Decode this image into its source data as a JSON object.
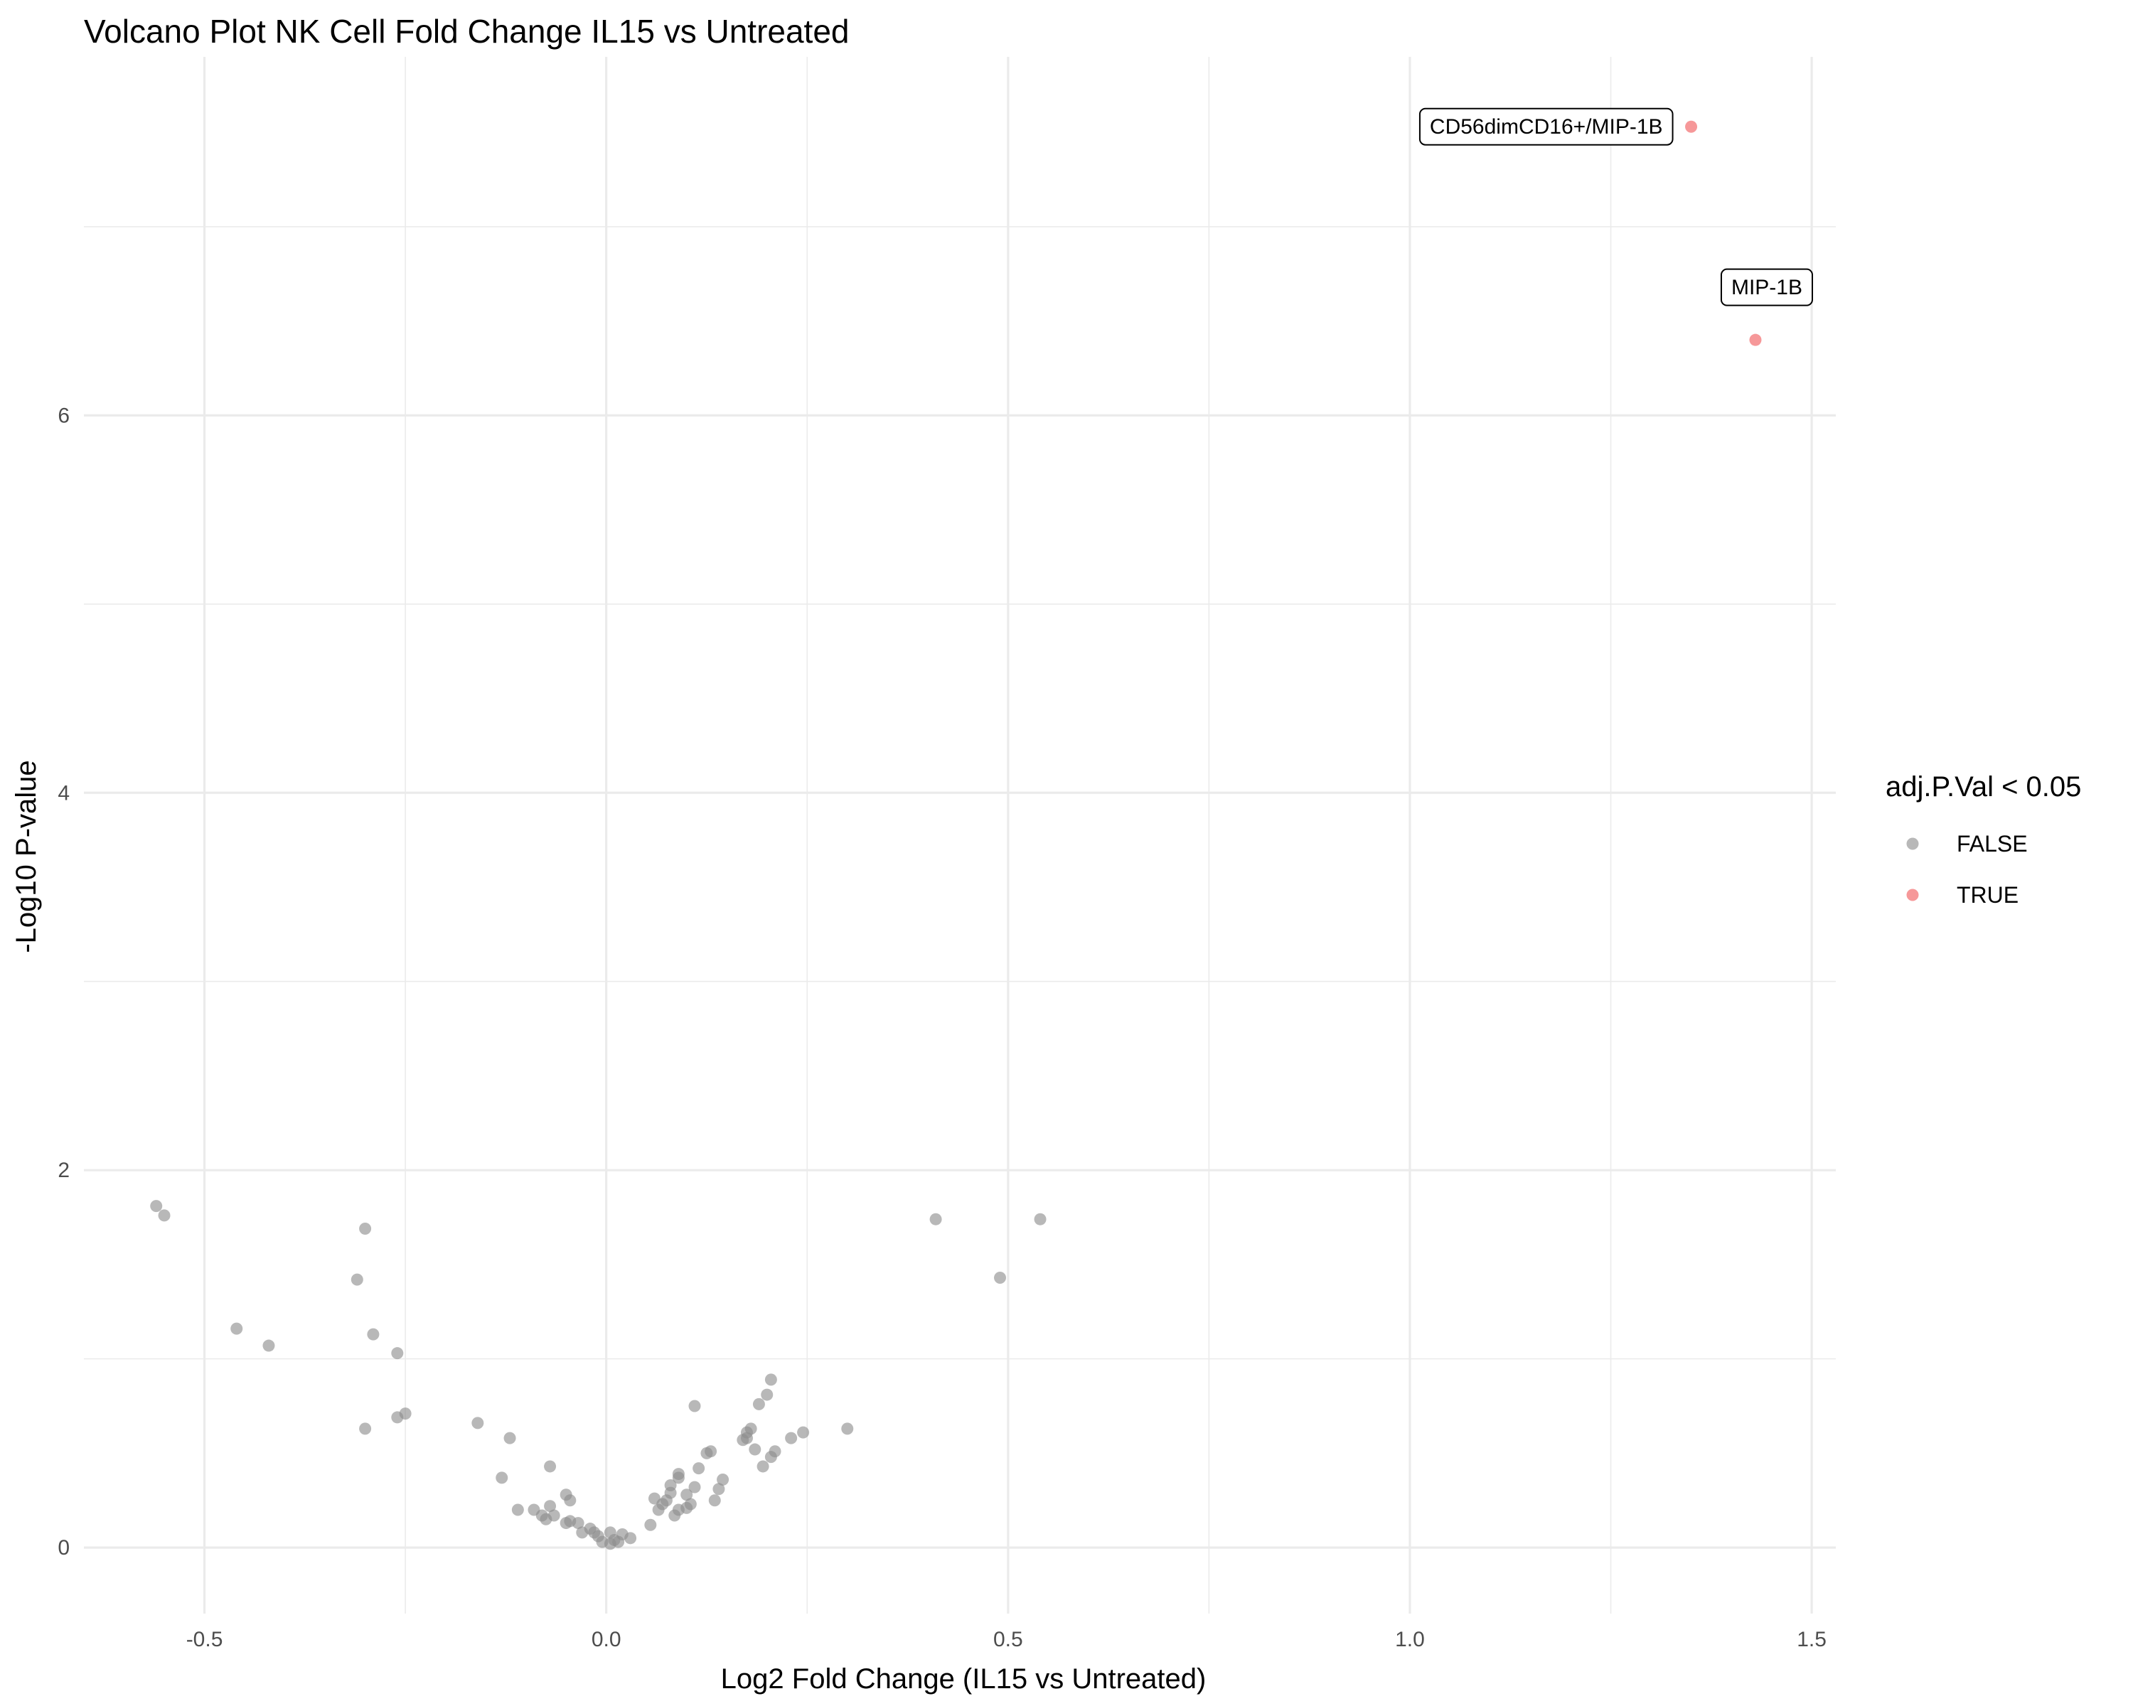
{
  "chart_data": {
    "type": "scatter",
    "title": "Volcano Plot NK Cell Fold Change  IL15 vs Untreated",
    "xlabel": "Log2 Fold Change (IL15 vs Untreated)",
    "ylabel": "-Log10 P-value",
    "xlim": [
      -0.65,
      1.53
    ],
    "ylim": [
      -0.35,
      7.9
    ],
    "x_ticks": [
      -0.5,
      0.0,
      0.5,
      1.0,
      1.5
    ],
    "x_tick_labels": [
      "-0.5",
      "0.0",
      "0.5",
      "1.0",
      "1.5"
    ],
    "y_ticks": [
      0,
      2,
      4,
      6
    ],
    "y_tick_labels": [
      "0",
      "2",
      "4",
      "6"
    ],
    "grid": true,
    "legend": {
      "title": "adj.P.Val < 0.05",
      "placement": "right",
      "entries": [
        {
          "label": "FALSE",
          "color": "#8c8c8c"
        },
        {
          "label": "TRUE",
          "color": "#f0585a"
        }
      ]
    },
    "series": [
      {
        "name": "FALSE",
        "color": "#8c8c8c",
        "points": [
          [
            -0.56,
            1.81
          ],
          [
            -0.55,
            1.76
          ],
          [
            -0.46,
            1.16
          ],
          [
            -0.42,
            1.07
          ],
          [
            -0.3,
            1.69
          ],
          [
            -0.31,
            1.42
          ],
          [
            -0.29,
            1.13
          ],
          [
            -0.26,
            1.03
          ],
          [
            -0.25,
            0.71
          ],
          [
            -0.26,
            0.69
          ],
          [
            -0.3,
            0.63
          ],
          [
            -0.16,
            0.66
          ],
          [
            -0.12,
            0.58
          ],
          [
            -0.13,
            0.37
          ],
          [
            -0.11,
            0.2
          ],
          [
            -0.09,
            0.2
          ],
          [
            -0.08,
            0.17
          ],
          [
            -0.075,
            0.15
          ],
          [
            -0.07,
            0.43
          ],
          [
            -0.07,
            0.22
          ],
          [
            -0.065,
            0.17
          ],
          [
            -0.05,
            0.28
          ],
          [
            -0.045,
            0.25
          ],
          [
            -0.045,
            0.14
          ],
          [
            -0.05,
            0.13
          ],
          [
            -0.035,
            0.13
          ],
          [
            -0.03,
            0.08
          ],
          [
            -0.02,
            0.1
          ],
          [
            -0.015,
            0.08
          ],
          [
            -0.01,
            0.06
          ],
          [
            -0.005,
            0.03
          ],
          [
            0.005,
            0.08
          ],
          [
            0.005,
            0.02
          ],
          [
            0.01,
            0.04
          ],
          [
            0.015,
            0.03
          ],
          [
            0.02,
            0.07
          ],
          [
            0.03,
            0.05
          ],
          [
            0.055,
            0.12
          ],
          [
            0.06,
            0.26
          ],
          [
            0.065,
            0.2
          ],
          [
            0.07,
            0.23
          ],
          [
            0.075,
            0.25
          ],
          [
            0.08,
            0.29
          ],
          [
            0.08,
            0.33
          ],
          [
            0.085,
            0.17
          ],
          [
            0.09,
            0.2
          ],
          [
            0.09,
            0.37
          ],
          [
            0.09,
            0.39
          ],
          [
            0.1,
            0.21
          ],
          [
            0.1,
            0.28
          ],
          [
            0.105,
            0.23
          ],
          [
            0.11,
            0.75
          ],
          [
            0.11,
            0.32
          ],
          [
            0.115,
            0.42
          ],
          [
            0.125,
            0.5
          ],
          [
            0.13,
            0.51
          ],
          [
            0.135,
            0.25
          ],
          [
            0.14,
            0.31
          ],
          [
            0.145,
            0.36
          ],
          [
            0.17,
            0.57
          ],
          [
            0.175,
            0.58
          ],
          [
            0.175,
            0.61
          ],
          [
            0.18,
            0.63
          ],
          [
            0.185,
            0.52
          ],
          [
            0.19,
            0.76
          ],
          [
            0.195,
            0.43
          ],
          [
            0.2,
            0.81
          ],
          [
            0.205,
            0.89
          ],
          [
            0.205,
            0.48
          ],
          [
            0.21,
            0.51
          ],
          [
            0.23,
            0.58
          ],
          [
            0.245,
            0.61
          ],
          [
            0.3,
            0.63
          ],
          [
            0.41,
            1.74
          ],
          [
            0.49,
            1.43
          ],
          [
            0.54,
            1.74
          ]
        ]
      },
      {
        "name": "TRUE",
        "color": "#f0585a",
        "points": [
          [
            1.35,
            7.53
          ],
          [
            1.43,
            6.4
          ]
        ]
      }
    ],
    "annotations": [
      {
        "text": "CD56dimCD16+/MIP-1B",
        "x": 1.35,
        "y": 7.53,
        "side": "left"
      },
      {
        "text": "MIP-1B",
        "x": 1.43,
        "y": 6.4,
        "side": "above"
      }
    ]
  }
}
